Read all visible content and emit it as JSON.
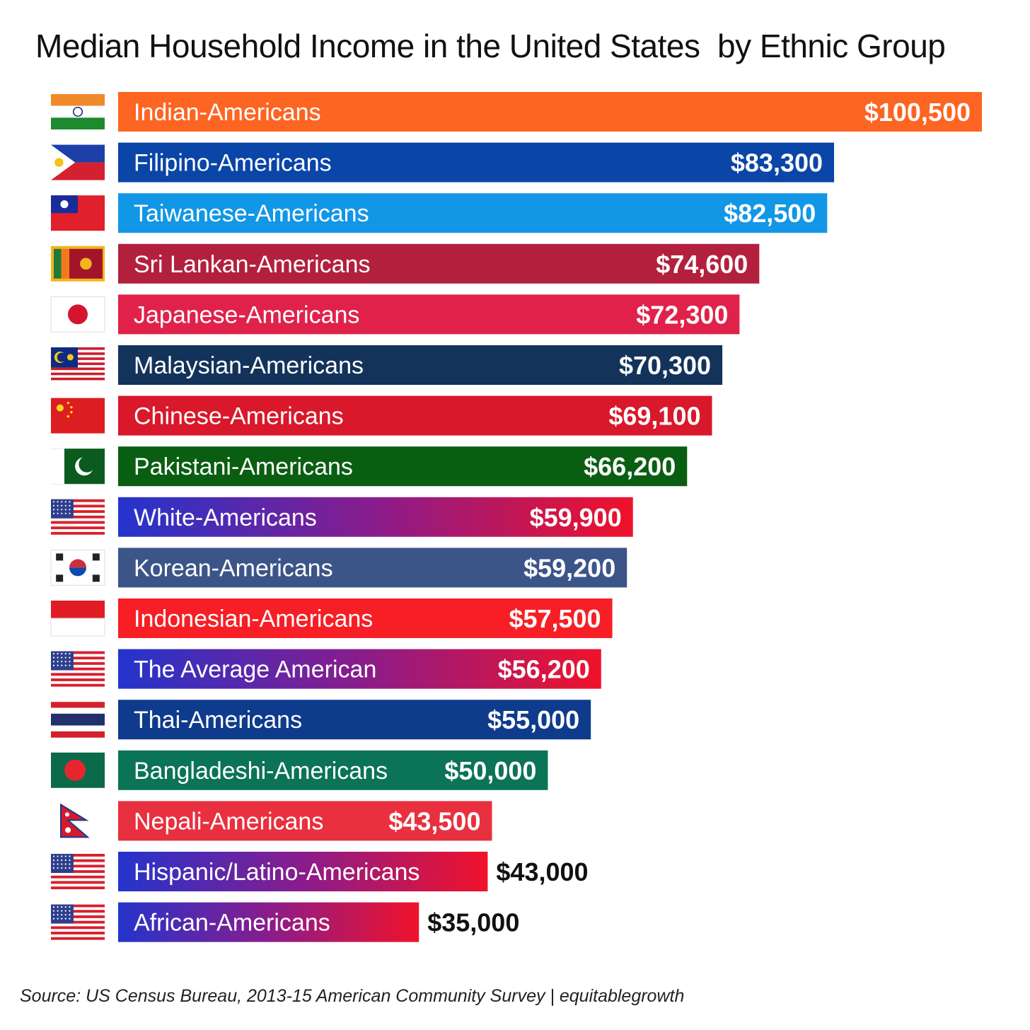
{
  "chart_data": {
    "type": "bar",
    "orientation": "horizontal",
    "title": "Median Household Income in the United States  by Ethnic Group",
    "source": "Source: US Census Bureau, 2013-15 American Community Survey | equitablegrowth",
    "xlim": [
      0,
      100500
    ],
    "grid": false,
    "legend": "none",
    "bars": [
      {
        "label": "Indian-Americans",
        "value": 100500,
        "value_label": "$100,500",
        "flag": "india-flag-icon",
        "colors": [
          "#fd6522"
        ],
        "value_inside": true
      },
      {
        "label": "Filipino-Americans",
        "value": 83300,
        "value_label": "$83,300",
        "flag": "philippines-flag-icon",
        "colors": [
          "#0a45a8"
        ],
        "value_inside": true
      },
      {
        "label": "Taiwanese-Americans",
        "value": 82500,
        "value_label": "$82,500",
        "flag": "taiwan-flag-icon",
        "colors": [
          "#1296e6"
        ],
        "value_inside": true
      },
      {
        "label": "Sri Lankan-Americans",
        "value": 74600,
        "value_label": "$74,600",
        "flag": "sri-lanka-flag-icon",
        "colors": [
          "#b3203e"
        ],
        "value_inside": true
      },
      {
        "label": "Japanese-Americans",
        "value": 72300,
        "value_label": "$72,300",
        "flag": "japan-flag-icon",
        "colors": [
          "#e0224a"
        ],
        "value_inside": true
      },
      {
        "label": "Malaysian-Americans",
        "value": 70300,
        "value_label": "$70,300",
        "flag": "malaysia-flag-icon",
        "colors": [
          "#13335a"
        ],
        "value_inside": true
      },
      {
        "label": "Chinese-Americans",
        "value": 69100,
        "value_label": "$69,100",
        "flag": "china-flag-icon",
        "colors": [
          "#d9182b"
        ],
        "value_inside": true
      },
      {
        "label": "Pakistani-Americans",
        "value": 66200,
        "value_label": "$66,200",
        "flag": "pakistan-flag-icon",
        "colors": [
          "#0a5e12"
        ],
        "value_inside": true
      },
      {
        "label": "White-Americans",
        "value": 59900,
        "value_label": "$59,900",
        "flag": "usa-flag-icon",
        "colors": [
          "#2434cc",
          "#8a1c8c",
          "#f0122a"
        ],
        "value_inside": true
      },
      {
        "label": "Korean-Americans",
        "value": 59200,
        "value_label": "$59,200",
        "flag": "south-korea-flag-icon",
        "colors": [
          "#3c5589"
        ],
        "value_inside": true
      },
      {
        "label": "Indonesian-Americans",
        "value": 57500,
        "value_label": "$57,500",
        "flag": "indonesia-flag-icon",
        "colors": [
          "#f71f25"
        ],
        "value_inside": true
      },
      {
        "label": "The Average American",
        "value": 56200,
        "value_label": "$56,200",
        "flag": "usa-flag-icon",
        "colors": [
          "#2434cc",
          "#8a1c8c",
          "#f0122a"
        ],
        "value_inside": true
      },
      {
        "label": "Thai-Americans",
        "value": 55000,
        "value_label": "$55,000",
        "flag": "thailand-flag-icon",
        "colors": [
          "#0e3b8c"
        ],
        "value_inside": true
      },
      {
        "label": "Bangladeshi-Americans",
        "value": 50000,
        "value_label": "$50,000",
        "flag": "bangladesh-flag-icon",
        "colors": [
          "#0b7356"
        ],
        "value_inside": true
      },
      {
        "label": "Nepali-Americans",
        "value": 43500,
        "value_label": "$43,500",
        "flag": "nepal-flag-icon",
        "colors": [
          "#e8303f"
        ],
        "value_inside": true
      },
      {
        "label": "Hispanic/Latino-Americans",
        "value": 43000,
        "value_label": "$43,000",
        "flag": "usa-flag-icon",
        "colors": [
          "#2434cc",
          "#8a1c8c",
          "#f0122a"
        ],
        "value_inside": false
      },
      {
        "label": "African-Americans",
        "value": 35000,
        "value_label": "$35,000",
        "flag": "usa-flag-icon",
        "colors": [
          "#2434cc",
          "#8a1c8c",
          "#f0122a"
        ],
        "value_inside": false
      }
    ]
  }
}
